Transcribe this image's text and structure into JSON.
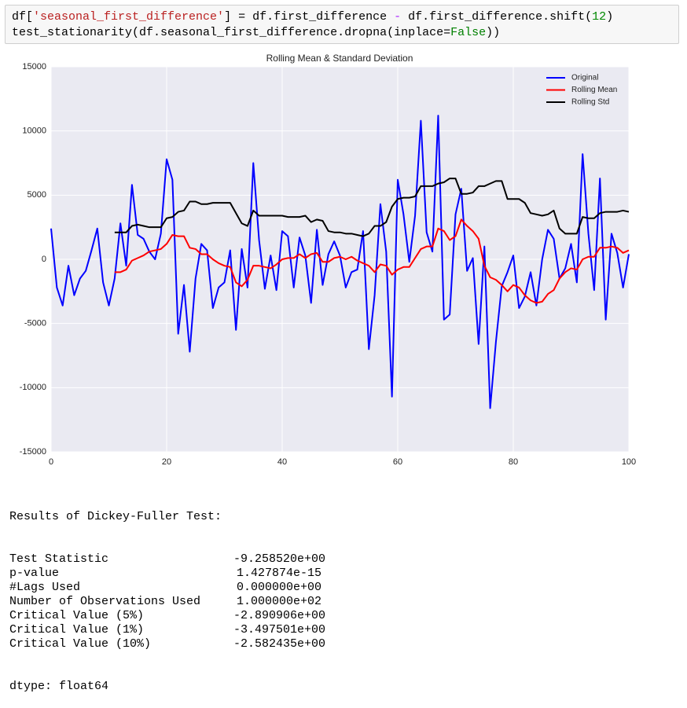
{
  "code": {
    "lines": [
      [
        "df[",
        "'seasonal_first_difference'",
        "] = df.first_difference ",
        "-",
        " df.first_difference.shift(",
        "12",
        ")"
      ],
      [
        "test_stationarity(df.seasonal_first_difference.dropna(inplace=",
        "False",
        "))"
      ]
    ]
  },
  "chart_data": {
    "type": "line",
    "title": "Rolling Mean & Standard Deviation",
    "x": [
      0,
      1,
      2,
      3,
      4,
      5,
      6,
      7,
      8,
      9,
      10,
      11,
      12,
      13,
      14,
      15,
      16,
      17,
      18,
      19,
      20,
      21,
      22,
      23,
      24,
      25,
      26,
      27,
      28,
      29,
      30,
      31,
      32,
      33,
      34,
      35,
      36,
      37,
      38,
      39,
      40,
      41,
      42,
      43,
      44,
      45,
      46,
      47,
      48,
      49,
      50,
      51,
      52,
      53,
      54,
      55,
      56,
      57,
      58,
      59,
      60,
      61,
      62,
      63,
      64,
      65,
      66,
      67,
      68,
      69,
      70,
      71,
      72,
      73,
      74,
      75,
      76,
      77,
      78,
      79,
      80,
      81,
      82,
      83,
      84,
      85,
      86,
      87,
      88,
      89,
      90,
      91,
      92,
      93,
      94,
      95,
      96,
      97,
      98,
      99,
      100
    ],
    "series": [
      {
        "name": "Original",
        "color": "#0000ff",
        "values": [
          2400,
          -2200,
          -3600,
          -500,
          -2800,
          -1500,
          -900,
          700,
          2400,
          -1800,
          -3600,
          -1500,
          2800,
          -500,
          5800,
          1900,
          1600,
          600,
          0,
          2000,
          7800,
          6200,
          -5800,
          -2000,
          -7200,
          -1500,
          1200,
          700,
          -3800,
          -2200,
          -1800,
          700,
          -5500,
          800,
          -2200,
          7500,
          1500,
          -2300,
          300,
          -2400,
          2200,
          1800,
          -2200,
          1700,
          300,
          -3400,
          2300,
          -2000,
          400,
          1400,
          300,
          -2200,
          -1000,
          -800,
          2200,
          -7000,
          -2800,
          4300,
          600,
          -10700,
          6200,
          3500,
          -200,
          3400,
          10800,
          2100,
          600,
          11200,
          -4700,
          -4300,
          3500,
          5500,
          -900,
          100,
          -6600,
          1000,
          -11600,
          -6400,
          -2100,
          -1000,
          300,
          -3800,
          -2900,
          -1000,
          -3600,
          0,
          2300,
          1600,
          -1500,
          -700,
          1200,
          -1800,
          8200,
          2000,
          -2400,
          6300,
          -4700,
          2000,
          500,
          -2200,
          400
        ]
      },
      {
        "name": "Rolling Mean",
        "color": "#ff0000",
        "values": [
          null,
          null,
          null,
          null,
          null,
          null,
          null,
          null,
          null,
          null,
          null,
          -1000,
          -1000,
          -800,
          -100,
          100,
          300,
          600,
          700,
          800,
          1200,
          1900,
          1800,
          1800,
          900,
          800,
          400,
          400,
          0,
          -300,
          -500,
          -600,
          -1800,
          -2100,
          -1600,
          -500,
          -500,
          -600,
          -700,
          -400,
          0,
          100,
          100,
          400,
          100,
          400,
          500,
          -200,
          -200,
          100,
          200,
          0,
          200,
          -100,
          -300,
          -500,
          -1000,
          -400,
          -500,
          -1200,
          -800,
          -600,
          -600,
          100,
          800,
          1000,
          1000,
          2400,
          2200,
          1500,
          1800,
          3100,
          2600,
          2200,
          1600,
          -500,
          -1400,
          -1600,
          -2000,
          -2500,
          -2000,
          -2200,
          -2800,
          -3200,
          -3400,
          -3300,
          -2700,
          -2400,
          -1500,
          -1000,
          -700,
          -800,
          0,
          200,
          200,
          900,
          900,
          1000,
          900,
          500,
          700
        ]
      },
      {
        "name": "Rolling Std",
        "color": "#000000",
        "values": [
          null,
          null,
          null,
          null,
          null,
          null,
          null,
          null,
          null,
          null,
          null,
          2100,
          2100,
          2100,
          2600,
          2700,
          2600,
          2500,
          2500,
          2500,
          3200,
          3300,
          3700,
          3800,
          4500,
          4500,
          4300,
          4300,
          4400,
          4400,
          4400,
          4400,
          3600,
          2800,
          2600,
          3800,
          3400,
          3400,
          3400,
          3400,
          3400,
          3300,
          3300,
          3300,
          3400,
          2900,
          3100,
          3000,
          2200,
          2100,
          2100,
          2000,
          2000,
          1900,
          1800,
          2000,
          2600,
          2600,
          2900,
          4100,
          4700,
          4800,
          4800,
          4900,
          5700,
          5700,
          5700,
          5900,
          6000,
          6300,
          6300,
          5100,
          5100,
          5200,
          5700,
          5700,
          5900,
          6100,
          6100,
          4700,
          4700,
          4700,
          4400,
          3600,
          3500,
          3400,
          3500,
          3800,
          2400,
          2000,
          2000,
          2000,
          3300,
          3200,
          3200,
          3600,
          3700,
          3700,
          3700,
          3800,
          3700
        ]
      }
    ],
    "xlim": [
      0,
      100
    ],
    "xticks": [
      0,
      20,
      40,
      60,
      80,
      100
    ],
    "ylim": [
      -15000,
      15000
    ],
    "yticks": [
      -15000,
      -10000,
      -5000,
      0,
      5000,
      10000,
      15000
    ],
    "grid": true,
    "legend": "upper right"
  },
  "output": {
    "title": "Results of Dickey-Fuller Test:",
    "rows": [
      [
        "Test Statistic",
        "-9.258520e+00"
      ],
      [
        "p-value",
        "1.427874e-15"
      ],
      [
        "#Lags Used",
        "0.000000e+00"
      ],
      [
        "Number of Observations Used",
        "1.000000e+02"
      ],
      [
        "Critical Value (5%)",
        "-2.890906e+00"
      ],
      [
        "Critical Value (1%)",
        "-3.497501e+00"
      ],
      [
        "Critical Value (10%)",
        "-2.582435e+00"
      ]
    ],
    "footer": "dtype: float64"
  }
}
